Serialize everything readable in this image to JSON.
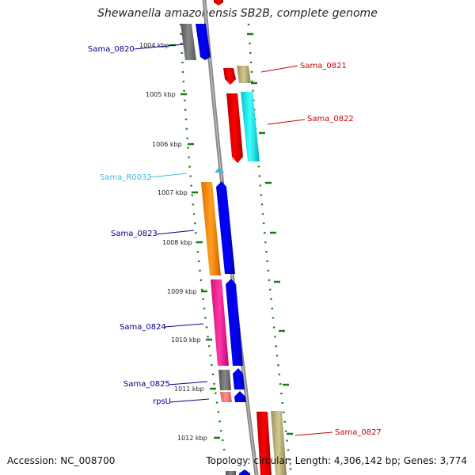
{
  "title": "Shewanella amazonensis SB2B, complete genome",
  "accession": "Accession: NC_008700",
  "summary": "Topology: circular; Length: 4,306,142 bp; Genes: 3,774",
  "ticks": [
    "1004 kbp",
    "1005 kbp",
    "1006 kbp",
    "1007 kbp",
    "1008 kbp",
    "1009 kbp",
    "1010 kbp",
    "1011 kbp",
    "1012 kbp"
  ],
  "genes": [
    {
      "name": "Sama_0820",
      "color": "#00008b"
    },
    {
      "name": "Sama_0821",
      "color": "#cc0000"
    },
    {
      "name": "Sama_0822",
      "color": "#cc0000"
    },
    {
      "name": "Sama_R0032",
      "color": "#40b8d8"
    },
    {
      "name": "Sama_0823",
      "color": "#00008b"
    },
    {
      "name": "Sama_0824",
      "color": "#00008b"
    },
    {
      "name": "Sama_0825",
      "color": "#00008b"
    },
    {
      "name": "rpsU",
      "color": "#00008b"
    },
    {
      "name": "Sama_0827",
      "color": "#cc0000"
    }
  ]
}
